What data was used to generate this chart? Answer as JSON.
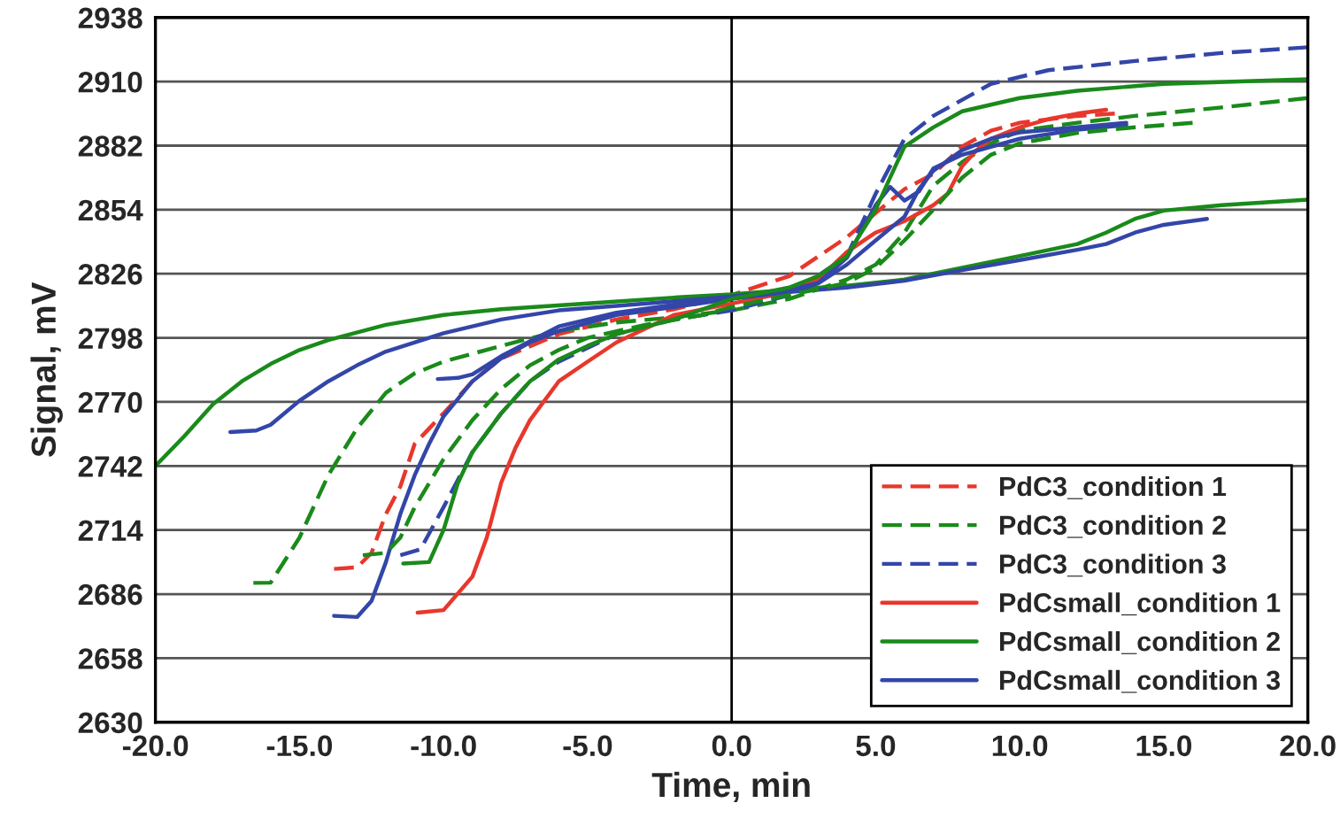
{
  "chart_data": {
    "type": "line",
    "xlabel": "Time, min",
    "ylabel": "Signal, mV",
    "xlim": [
      -20,
      20
    ],
    "ylim": [
      2630,
      2938
    ],
    "xticks": [
      {
        "value": -20,
        "label": "-20.0"
      },
      {
        "value": -15,
        "label": "-15.0"
      },
      {
        "value": -10,
        "label": "-10.0"
      },
      {
        "value": -5,
        "label": "-5.0"
      },
      {
        "value": 0,
        "label": "0.0"
      },
      {
        "value": 5,
        "label": "5.0"
      },
      {
        "value": 10,
        "label": "10.0"
      },
      {
        "value": 15,
        "label": "15.0"
      },
      {
        "value": 20,
        "label": "20.0"
      }
    ],
    "yticks": [
      2630,
      2658,
      2686,
      2714,
      2742,
      2770,
      2798,
      2826,
      2854,
      2882,
      2910,
      2938
    ],
    "grid": "y",
    "legend": "bottom right",
    "marker": "none",
    "ref_lines": [
      {
        "axis": "x",
        "value": 0,
        "color": "#000000"
      }
    ],
    "series": [
      {
        "name": "PdC3_condition 1",
        "color": "#e8372c",
        "line_style": "dashed",
        "x": [
          -13.8,
          -13,
          -12.5,
          -12,
          -11.5,
          -11,
          -10,
          -9,
          -8,
          -6,
          -4,
          -2,
          0,
          2,
          4,
          5,
          6,
          7,
          8,
          9,
          10,
          12,
          13.3
        ],
        "values": [
          2697,
          2697.7,
          2704,
          2721,
          2733,
          2751.7,
          2765,
          2779,
          2789,
          2799.6,
          2806,
          2810.5,
          2816.7,
          2825,
          2842,
          2852.6,
          2863,
          2869.6,
          2881.6,
          2888.5,
          2892,
          2895,
          2896
        ]
      },
      {
        "name": "PdC3_condition 2",
        "color": "#1a8a1a",
        "line_style": "dashed",
        "x": [
          -16.6,
          -16,
          -15,
          -14,
          -13,
          -12,
          -11,
          -10,
          -8,
          -6,
          -4,
          -2,
          0,
          2,
          4,
          5,
          6,
          7,
          8,
          9,
          10,
          12,
          14,
          17,
          20
        ],
        "values": [
          2690.9,
          2691,
          2710.7,
          2738,
          2758.5,
          2774,
          2782.5,
          2787.6,
          2794.5,
          2801,
          2804.7,
          2807,
          2810,
          2815,
          2823.5,
          2830,
          2844,
          2864.5,
          2874.8,
          2883,
          2888.5,
          2892,
          2895,
          2898.7,
          2902.8
        ]
      },
      {
        "name": "PdC3_condition 3",
        "color": "#3346a8",
        "line_style": "dashed",
        "x": [
          -11.5,
          -10.8,
          -10,
          -9,
          -8,
          -7,
          -6,
          -4,
          -2,
          0,
          2,
          4,
          5,
          6,
          7,
          9,
          11,
          14,
          17,
          20
        ],
        "values": [
          2703,
          2705.6,
          2724,
          2748,
          2765,
          2779,
          2787.6,
          2799.6,
          2806,
          2810,
          2816.7,
          2833.7,
          2861,
          2885,
          2895,
          2909,
          2915,
          2919,
          2922.5,
          2925
        ]
      },
      {
        "name": "PdCsmall_condition 1",
        "color": "#e8372c",
        "line_style": "solid",
        "x": [
          -10.9,
          -10,
          -9,
          -8.5,
          -8,
          -7.5,
          -7,
          -6,
          -5,
          -4,
          -2,
          0,
          2,
          3,
          4,
          5,
          6,
          7,
          7.5,
          8,
          8.5,
          9,
          10,
          11,
          12,
          13
        ],
        "values": [
          2677.9,
          2679,
          2693.6,
          2710.7,
          2734.6,
          2750,
          2762,
          2779,
          2787.6,
          2796,
          2808,
          2813,
          2818,
          2823.5,
          2835.5,
          2844,
          2849,
          2856,
          2861,
          2873,
          2880,
          2885,
          2890,
          2893.6,
          2896,
          2897.7
        ]
      },
      {
        "name": "PdCsmall_condition 2",
        "color": "#1a8a1a",
        "line_style": "solid",
        "x": [
          -20,
          -19,
          -18,
          -17,
          -16,
          -15,
          -14,
          -12,
          -10,
          -8,
          -5,
          -2,
          0,
          2,
          4,
          6,
          8,
          10,
          12,
          13,
          14,
          15,
          17,
          20
        ],
        "values": [
          2742,
          2755,
          2769,
          2779,
          2786.6,
          2792.7,
          2797,
          2803.7,
          2808,
          2810.5,
          2813,
          2815.6,
          2817,
          2819,
          2820.8,
          2823.5,
          2828.6,
          2833.8,
          2839,
          2844,
          2850,
          2853.6,
          2856,
          2858.4
        ]
      },
      {
        "name": "PdCsmall_condition 3",
        "color": "#3346a8",
        "line_style": "solid",
        "x": [
          -17.4,
          -16.5,
          -16,
          -15,
          -14,
          -13,
          -12,
          -10,
          -8,
          -6,
          -4,
          -2,
          0,
          2,
          4,
          6,
          8,
          10,
          12,
          13,
          14,
          15,
          16.5
        ],
        "values": [
          2756.8,
          2757.5,
          2760,
          2770.5,
          2779,
          2786,
          2792,
          2800,
          2806,
          2810,
          2812,
          2814,
          2816,
          2818,
          2820,
          2823,
          2827.6,
          2832,
          2836.5,
          2839,
          2844,
          2847.4,
          2850
        ]
      },
      {
        "color": "#3346a8",
        "line_style": "solid",
        "x": [
          -13.8,
          -13,
          -12.5,
          -12,
          -11.5,
          -11,
          -10.5,
          -10,
          -9,
          -8,
          -7,
          -6,
          -4,
          -2,
          0,
          2,
          3,
          4,
          5,
          6,
          6.5,
          7,
          8,
          9,
          10,
          12,
          13.7
        ],
        "values": [
          2676.5,
          2676,
          2683,
          2700,
          2721,
          2738,
          2751.7,
          2763.7,
          2779,
          2789,
          2796,
          2801,
          2808,
          2811.5,
          2815,
          2818,
          2821.8,
          2830,
          2840.6,
          2851,
          2863,
          2871,
          2880,
          2885,
          2887.8,
          2890,
          2892
        ]
      },
      {
        "color": "#3346a8",
        "line_style": "solid",
        "x": [
          -10.2,
          -9.5,
          -9,
          -8,
          -6,
          -4,
          -2,
          0,
          2,
          3,
          4,
          5,
          5.5,
          6,
          6.5,
          7,
          8,
          10,
          12,
          13.7
        ],
        "values": [
          2780,
          2780.5,
          2782,
          2790,
          2803,
          2809,
          2812.5,
          2816,
          2819,
          2822,
          2833,
          2856,
          2864,
          2858,
          2862,
          2872,
          2878,
          2885,
          2889,
          2891
        ]
      },
      {
        "color": "#1a8a1a",
        "line_style": "solid",
        "x": [
          -11.4,
          -10.5,
          -10,
          -9.5,
          -9,
          -8,
          -7,
          -6,
          -5,
          -4,
          -2,
          0,
          2,
          3,
          4,
          4.5,
          5,
          5.5,
          6,
          7,
          8,
          10,
          12,
          15,
          20
        ],
        "values": [
          2699.4,
          2700,
          2714,
          2734.6,
          2748,
          2765,
          2779,
          2788.6,
          2794.5,
          2799.6,
          2806,
          2815,
          2820,
          2825,
          2833.7,
          2844,
          2854,
          2868,
          2881.6,
          2890,
          2897,
          2902.8,
          2906,
          2909,
          2911
        ]
      },
      {
        "color": "#1a8a1a",
        "line_style": "dashed",
        "x": [
          -12.8,
          -12,
          -11.5,
          -11,
          -10,
          -9,
          -8,
          -7,
          -6,
          -5,
          -3,
          -1,
          0,
          2,
          4,
          5,
          6,
          7,
          8,
          9,
          10,
          12,
          14,
          16
        ],
        "values": [
          2703,
          2704,
          2710.7,
          2724,
          2745,
          2762,
          2775.6,
          2786,
          2792.7,
          2798,
          2803.7,
          2808,
          2811.5,
          2816.7,
          2822,
          2828.6,
          2840.6,
          2854,
          2868,
          2878,
          2883,
          2887.6,
          2890,
          2892
        ]
      }
    ]
  }
}
